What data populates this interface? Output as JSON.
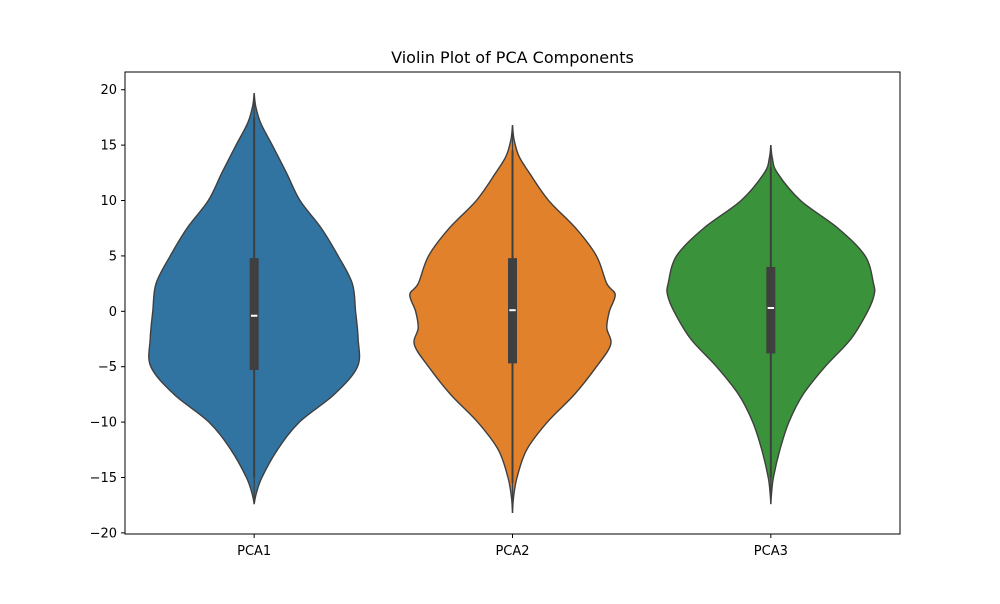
{
  "chart_data": {
    "type": "violin",
    "title": "Violin Plot of PCA Components",
    "xlabel": "",
    "ylabel": "",
    "categories": [
      "PCA1",
      "PCA2",
      "PCA3"
    ],
    "ylim": [
      -20.1,
      21.6
    ],
    "yticks": [
      20,
      15,
      10,
      5,
      0,
      -5,
      -10,
      -15,
      -20
    ],
    "grid": false,
    "legend": "none",
    "violins": [
      {
        "category": "PCA1",
        "color": "#3274a1",
        "range": [
          -17.4,
          19.7
        ],
        "quartiles": [
          -5.3,
          4.8
        ],
        "median": -0.4,
        "whisker": [
          -15.0,
          17.5
        ],
        "density": [
          [
            19.7,
            0.0
          ],
          [
            18.5,
            0.012
          ],
          [
            17.0,
            0.05
          ],
          [
            15.0,
            0.14
          ],
          [
            12.5,
            0.25
          ],
          [
            10.0,
            0.355
          ],
          [
            7.5,
            0.52
          ],
          [
            5.0,
            0.65
          ],
          [
            2.5,
            0.76
          ],
          [
            0.0,
            0.785
          ],
          [
            -2.5,
            0.805
          ],
          [
            -5.0,
            0.8
          ],
          [
            -7.5,
            0.62
          ],
          [
            -10.0,
            0.35
          ],
          [
            -12.5,
            0.18
          ],
          [
            -15.0,
            0.06
          ],
          [
            -16.5,
            0.015
          ],
          [
            -17.4,
            0.0
          ]
        ]
      },
      {
        "category": "PCA2",
        "color": "#e1812c",
        "range": [
          -18.2,
          16.8
        ],
        "quartiles": [
          -4.7,
          4.8
        ],
        "median": 0.1,
        "whisker": [
          -15.5,
          14.5
        ],
        "density": [
          [
            16.8,
            0.0
          ],
          [
            15.5,
            0.012
          ],
          [
            14.0,
            0.05
          ],
          [
            12.5,
            0.13
          ],
          [
            10.0,
            0.28
          ],
          [
            7.5,
            0.49
          ],
          [
            5.0,
            0.65
          ],
          [
            2.5,
            0.73
          ],
          [
            1.5,
            0.795
          ],
          [
            0.0,
            0.75
          ],
          [
            -1.5,
            0.73
          ],
          [
            -3.0,
            0.76
          ],
          [
            -5.0,
            0.65
          ],
          [
            -7.5,
            0.48
          ],
          [
            -10.0,
            0.27
          ],
          [
            -12.5,
            0.11
          ],
          [
            -15.0,
            0.035
          ],
          [
            -16.8,
            0.008
          ],
          [
            -18.2,
            0.0
          ]
        ]
      },
      {
        "category": "PCA3",
        "color": "#3a923a",
        "range": [
          -17.4,
          15.0
        ],
        "quartiles": [
          -3.8,
          4.0
        ],
        "median": 0.3,
        "whisker": [
          -15.0,
          13.0
        ],
        "density": [
          [
            15.0,
            0.0
          ],
          [
            13.8,
            0.012
          ],
          [
            12.5,
            0.05
          ],
          [
            10.0,
            0.23
          ],
          [
            7.5,
            0.52
          ],
          [
            5.0,
            0.73
          ],
          [
            2.5,
            0.795
          ],
          [
            1.5,
            0.8
          ],
          [
            0.0,
            0.75
          ],
          [
            -2.5,
            0.62
          ],
          [
            -5.0,
            0.42
          ],
          [
            -7.5,
            0.25
          ],
          [
            -10.0,
            0.14
          ],
          [
            -12.5,
            0.07
          ],
          [
            -15.0,
            0.02
          ],
          [
            -16.5,
            0.005
          ],
          [
            -17.4,
            0.0
          ]
        ]
      }
    ],
    "colors": {
      "outline": "#3f3f3f",
      "box": "#3f3f3f",
      "median": "#ffffff",
      "axis": "#000000"
    }
  }
}
